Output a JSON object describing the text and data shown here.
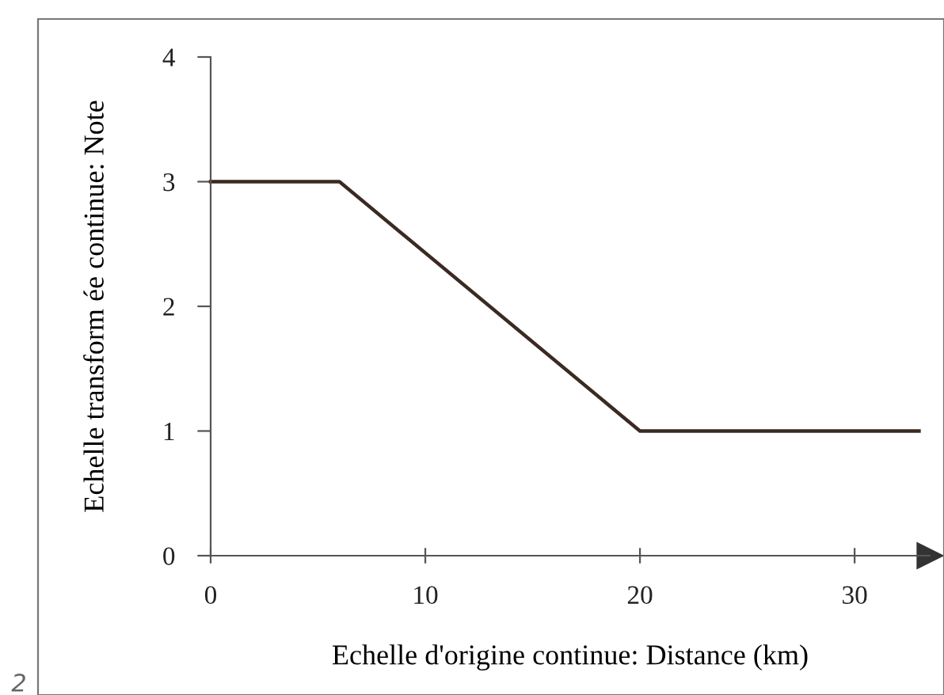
{
  "chart_data": {
    "type": "line",
    "xlabel": "Echelle d'origine continue: Distance (km)",
    "ylabel": "Echelle transform ée continue: Note",
    "x": [
      0,
      6,
      20,
      33
    ],
    "series": [
      {
        "color": "#3a2a22",
        "values": [
          3,
          3,
          1,
          1
        ]
      }
    ],
    "xlim": [
      0,
      33.5
    ],
    "xticks": [
      0,
      10,
      20,
      30
    ],
    "ylim": [
      0,
      4
    ],
    "yticks": [
      0,
      1,
      2,
      3,
      4
    ],
    "grid": false,
    "legend": false,
    "marker": "none",
    "line_style": "solid",
    "annotations": [
      "2"
    ]
  }
}
